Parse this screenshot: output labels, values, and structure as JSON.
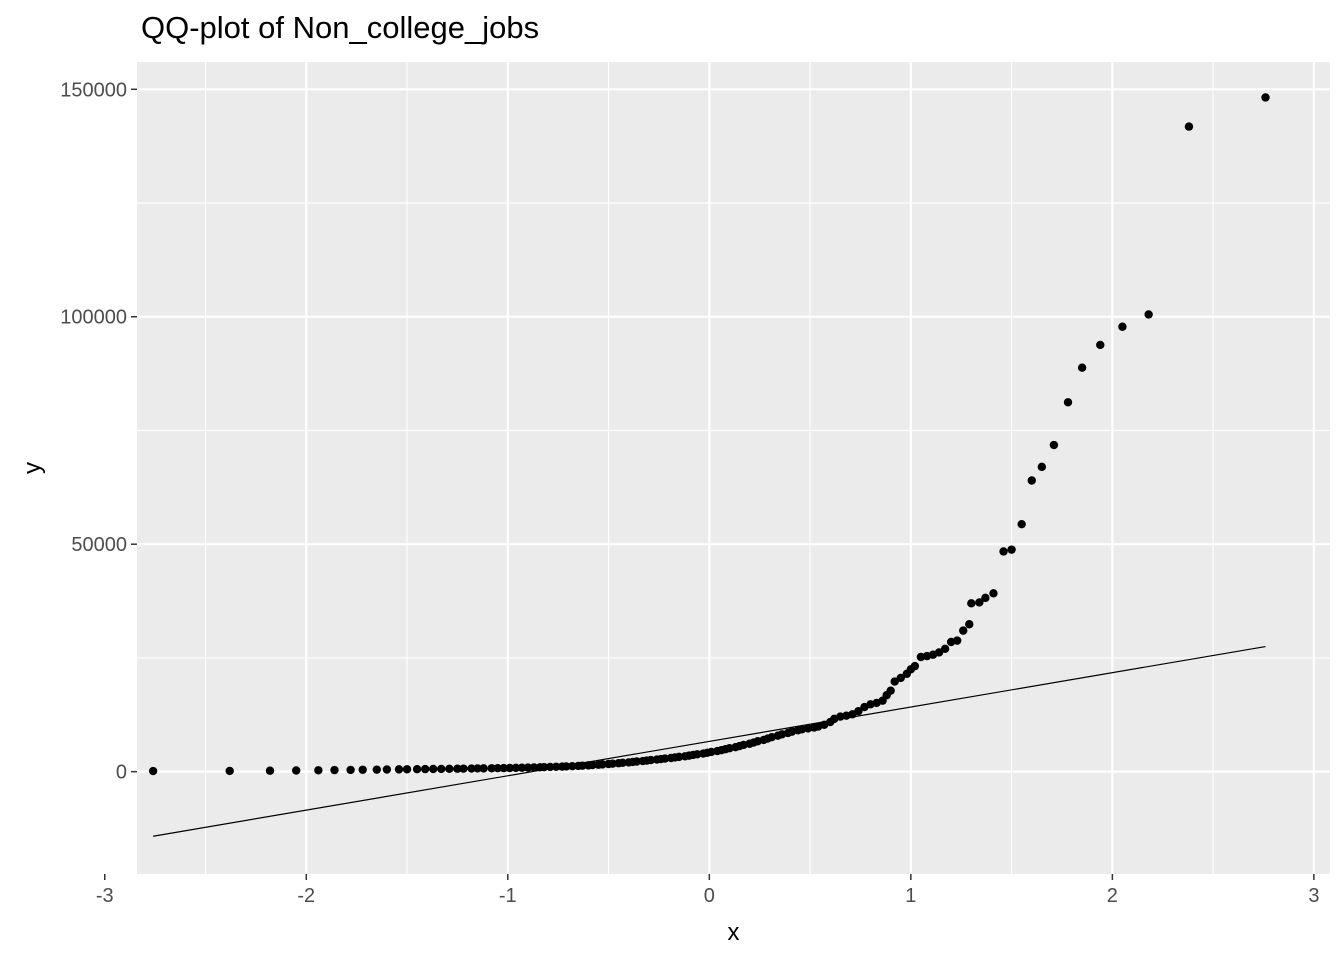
{
  "chart_data": {
    "type": "scatter",
    "title": "QQ-plot of Non_college_jobs",
    "xlabel": "x",
    "ylabel": "y",
    "xlim": [
      -2.84,
      3.08
    ],
    "ylim": [
      -22500,
      156000
    ],
    "x_ticks": [
      -3,
      -2,
      -1,
      0,
      1,
      2,
      3
    ],
    "y_ticks": [
      0,
      50000,
      100000,
      150000
    ],
    "x_tick_labels": [
      "-3",
      "-2",
      "-1",
      "0",
      "1",
      "2",
      "3"
    ],
    "y_tick_labels": [
      "0",
      "50000",
      "100000",
      "150000"
    ],
    "grid": true,
    "background": "#ebebeb",
    "grid_color": "#ffffff",
    "point_color": "#000000",
    "series": [
      {
        "points": [
          [
            -2.76,
            124
          ],
          [
            -2.38,
            150
          ],
          [
            -2.18,
            200
          ],
          [
            -2.05,
            250
          ],
          [
            -1.94,
            300
          ],
          [
            -1.86,
            340
          ],
          [
            -1.78,
            380
          ],
          [
            -1.72,
            410
          ],
          [
            -1.65,
            440
          ],
          [
            -1.6,
            470
          ],
          [
            -1.54,
            500
          ],
          [
            -1.5,
            520
          ],
          [
            -1.45,
            540
          ],
          [
            -1.41,
            560
          ],
          [
            -1.37,
            580
          ],
          [
            -1.33,
            600
          ],
          [
            -1.29,
            620
          ],
          [
            -1.25,
            640
          ],
          [
            -1.22,
            660
          ],
          [
            -1.18,
            680
          ],
          [
            -1.15,
            700
          ],
          [
            -1.12,
            720
          ],
          [
            -1.08,
            740
          ],
          [
            -1.05,
            760
          ],
          [
            -1.02,
            780
          ],
          [
            -0.99,
            800
          ],
          [
            -0.96,
            830
          ],
          [
            -0.93,
            860
          ],
          [
            -0.9,
            890
          ],
          [
            -0.87,
            920
          ],
          [
            -0.84,
            950
          ],
          [
            -0.82,
            990
          ],
          [
            -0.79,
            1030
          ],
          [
            -0.76,
            1070
          ],
          [
            -0.73,
            1110
          ],
          [
            -0.71,
            1150
          ],
          [
            -0.68,
            1200
          ],
          [
            -0.65,
            1260
          ],
          [
            -0.63,
            1320
          ],
          [
            -0.6,
            1380
          ],
          [
            -0.58,
            1450
          ],
          [
            -0.55,
            1520
          ],
          [
            -0.53,
            1600
          ],
          [
            -0.5,
            1680
          ],
          [
            -0.48,
            1760
          ],
          [
            -0.45,
            1850
          ],
          [
            -0.43,
            1940
          ],
          [
            -0.4,
            2030
          ],
          [
            -0.38,
            2130
          ],
          [
            -0.36,
            2230
          ],
          [
            -0.33,
            2330
          ],
          [
            -0.31,
            2430
          ],
          [
            -0.29,
            2540
          ],
          [
            -0.26,
            2650
          ],
          [
            -0.24,
            2760
          ],
          [
            -0.22,
            2880
          ],
          [
            -0.19,
            3000
          ],
          [
            -0.17,
            3120
          ],
          [
            -0.15,
            3250
          ],
          [
            -0.12,
            3380
          ],
          [
            -0.1,
            3520
          ],
          [
            -0.08,
            3670
          ],
          [
            -0.06,
            3820
          ],
          [
            -0.03,
            3980
          ],
          [
            -0.01,
            4150
          ],
          [
            0.01,
            4330
          ],
          [
            0.04,
            4520
          ],
          [
            0.06,
            4720
          ],
          [
            0.08,
            4930
          ],
          [
            0.1,
            5150
          ],
          [
            0.13,
            5380
          ],
          [
            0.15,
            5620
          ],
          [
            0.17,
            5870
          ],
          [
            0.2,
            6130
          ],
          [
            0.22,
            6400
          ],
          [
            0.24,
            6680
          ],
          [
            0.27,
            6970
          ],
          [
            0.29,
            7270
          ],
          [
            0.31,
            7580
          ],
          [
            0.34,
            7900
          ],
          [
            0.36,
            8200
          ],
          [
            0.39,
            8500
          ],
          [
            0.41,
            8800
          ],
          [
            0.44,
            9100
          ],
          [
            0.46,
            9300
          ],
          [
            0.49,
            9500
          ],
          [
            0.52,
            9700
          ],
          [
            0.54,
            9900
          ],
          [
            0.57,
            10300
          ],
          [
            0.6,
            10900
          ],
          [
            0.62,
            11600
          ],
          [
            0.65,
            12100
          ],
          [
            0.68,
            12300
          ],
          [
            0.71,
            12600
          ],
          [
            0.74,
            13300
          ],
          [
            0.77,
            14200
          ],
          [
            0.8,
            14800
          ],
          [
            0.83,
            15100
          ],
          [
            0.86,
            15600
          ],
          [
            0.88,
            16800
          ],
          [
            0.9,
            17800
          ],
          [
            0.92,
            19800
          ],
          [
            0.95,
            20600
          ],
          [
            0.98,
            21500
          ],
          [
            1.0,
            22500
          ],
          [
            1.02,
            23200
          ],
          [
            1.05,
            25200
          ],
          [
            1.08,
            25400
          ],
          [
            1.11,
            25700
          ],
          [
            1.14,
            26200
          ],
          [
            1.17,
            27000
          ],
          [
            1.2,
            28500
          ],
          [
            1.23,
            28800
          ],
          [
            1.26,
            31000
          ],
          [
            1.29,
            32400
          ],
          [
            1.3,
            37000
          ],
          [
            1.34,
            37200
          ],
          [
            1.37,
            38200
          ],
          [
            1.41,
            39200
          ],
          [
            1.46,
            48400
          ],
          [
            1.5,
            48800
          ],
          [
            1.55,
            54400
          ],
          [
            1.6,
            64000
          ],
          [
            1.65,
            67000
          ],
          [
            1.71,
            71800
          ],
          [
            1.78,
            81200
          ],
          [
            1.85,
            88800
          ],
          [
            1.94,
            93800
          ],
          [
            2.05,
            97800
          ],
          [
            2.18,
            100500
          ],
          [
            2.38,
            141800
          ],
          [
            2.76,
            148200
          ]
        ]
      }
    ],
    "reference_line": {
      "from": [
        -2.76,
        -14200
      ],
      "to": [
        2.76,
        27500
      ]
    }
  }
}
